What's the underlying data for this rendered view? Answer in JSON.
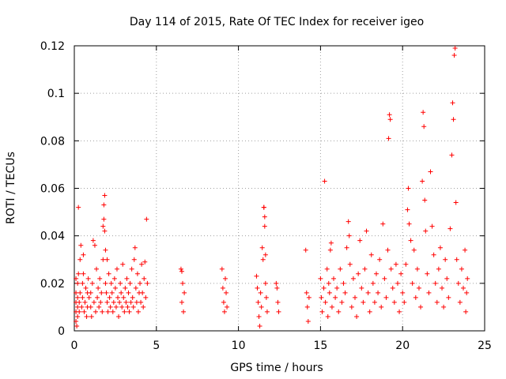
{
  "chart_data": {
    "type": "scatter",
    "title": "Day 114 of 2015, Rate Of TEC Index for receiver igeo",
    "xlabel": "GPS time / hours",
    "ylabel": "ROTI / TECUs",
    "xlim": [
      0,
      25
    ],
    "ylim": [
      0,
      0.12
    ],
    "x_ticks": [
      0,
      5,
      10,
      15,
      20,
      25
    ],
    "y_ticks": [
      0,
      0.02,
      0.04,
      0.06,
      0.08,
      0.1,
      0.12
    ],
    "x_tick_labels": [
      "0",
      "5",
      "10",
      "15",
      "20",
      "25"
    ],
    "y_tick_labels": [
      "0",
      "0.02",
      "0.04",
      "0.06",
      "0.08",
      "0.1",
      "0.12"
    ],
    "grid": true,
    "marker": "plus",
    "color": "#ff0000",
    "series": [
      {
        "name": "ROTI",
        "points": [
          [
            0.1,
            0.004
          ],
          [
            0.1,
            0.008
          ],
          [
            0.1,
            0.012
          ],
          [
            0.1,
            0.016
          ],
          [
            0.1,
            0.022
          ],
          [
            0.15,
            0.002
          ],
          [
            0.2,
            0.006
          ],
          [
            0.2,
            0.01
          ],
          [
            0.2,
            0.014
          ],
          [
            0.2,
            0.02
          ],
          [
            0.25,
            0.024
          ],
          [
            0.25,
            0.052
          ],
          [
            0.3,
            0.008
          ],
          [
            0.3,
            0.012
          ],
          [
            0.35,
            0.016
          ],
          [
            0.35,
            0.03
          ],
          [
            0.4,
            0.036
          ],
          [
            0.45,
            0.01
          ],
          [
            0.5,
            0.014
          ],
          [
            0.5,
            0.02
          ],
          [
            0.55,
            0.024
          ],
          [
            0.55,
            0.032
          ],
          [
            0.6,
            0.008
          ],
          [
            0.65,
            0.012
          ],
          [
            0.7,
            0.018
          ],
          [
            0.75,
            0.006
          ],
          [
            0.8,
            0.01
          ],
          [
            0.8,
            0.016
          ],
          [
            0.85,
            0.022
          ],
          [
            0.9,
            0.014
          ],
          [
            1.0,
            0.01
          ],
          [
            1.0,
            0.016
          ],
          [
            1.05,
            0.006
          ],
          [
            1.1,
            0.02
          ],
          [
            1.15,
            0.038
          ],
          [
            1.2,
            0.012
          ],
          [
            1.25,
            0.036
          ],
          [
            1.3,
            0.008
          ],
          [
            1.35,
            0.026
          ],
          [
            1.4,
            0.014
          ],
          [
            1.45,
            0.018
          ],
          [
            1.5,
            0.01
          ],
          [
            1.55,
            0.022
          ],
          [
            1.6,
            0.012
          ],
          [
            1.65,
            0.016
          ],
          [
            1.7,
            0.008
          ],
          [
            1.75,
            0.03
          ],
          [
            1.75,
            0.044
          ],
          [
            1.8,
            0.047
          ],
          [
            1.8,
            0.053
          ],
          [
            1.85,
            0.057
          ],
          [
            1.85,
            0.042
          ],
          [
            1.9,
            0.034
          ],
          [
            1.9,
            0.02
          ],
          [
            1.95,
            0.016
          ],
          [
            2.0,
            0.012
          ],
          [
            2.0,
            0.03
          ],
          [
            2.05,
            0.008
          ],
          [
            2.1,
            0.024
          ],
          [
            2.15,
            0.014
          ],
          [
            2.2,
            0.01
          ],
          [
            2.25,
            0.02
          ],
          [
            2.3,
            0.016
          ],
          [
            2.35,
            0.008
          ],
          [
            2.4,
            0.012
          ],
          [
            2.45,
            0.022
          ],
          [
            2.5,
            0.018
          ],
          [
            2.55,
            0.01
          ],
          [
            2.6,
            0.026
          ],
          [
            2.65,
            0.014
          ],
          [
            2.7,
            0.006
          ],
          [
            2.75,
            0.012
          ],
          [
            2.8,
            0.02
          ],
          [
            2.85,
            0.016
          ],
          [
            2.9,
            0.01
          ],
          [
            2.95,
            0.028
          ],
          [
            3.0,
            0.014
          ],
          [
            3.05,
            0.008
          ],
          [
            3.1,
            0.018
          ],
          [
            3.15,
            0.012
          ],
          [
            3.2,
            0.022
          ],
          [
            3.25,
            0.01
          ],
          [
            3.3,
            0.016
          ],
          [
            3.35,
            0.008
          ],
          [
            3.4,
            0.02
          ],
          [
            3.45,
            0.012
          ],
          [
            3.5,
            0.026
          ],
          [
            3.55,
            0.014
          ],
          [
            3.6,
            0.01
          ],
          [
            3.65,
            0.03
          ],
          [
            3.7,
            0.035
          ],
          [
            3.75,
            0.018
          ],
          [
            3.8,
            0.012
          ],
          [
            3.85,
            0.024
          ],
          [
            3.9,
            0.008
          ],
          [
            3.95,
            0.016
          ],
          [
            4.0,
            0.02
          ],
          [
            4.05,
            0.012
          ],
          [
            4.1,
            0.028
          ],
          [
            4.15,
            0.016
          ],
          [
            4.2,
            0.01
          ],
          [
            4.25,
            0.022
          ],
          [
            4.3,
            0.029
          ],
          [
            4.35,
            0.014
          ],
          [
            4.4,
            0.047
          ],
          [
            4.45,
            0.02
          ],
          [
            6.5,
            0.026
          ],
          [
            6.55,
            0.012
          ],
          [
            6.6,
            0.02
          ],
          [
            6.65,
            0.008
          ],
          [
            6.7,
            0.016
          ],
          [
            6.55,
            0.025
          ],
          [
            9.0,
            0.026
          ],
          [
            9.05,
            0.018
          ],
          [
            9.1,
            0.012
          ],
          [
            9.15,
            0.008
          ],
          [
            9.2,
            0.022
          ],
          [
            9.25,
            0.016
          ],
          [
            9.3,
            0.01
          ],
          [
            11.1,
            0.023
          ],
          [
            11.15,
            0.018
          ],
          [
            11.2,
            0.012
          ],
          [
            11.25,
            0.006
          ],
          [
            11.3,
            0.002
          ],
          [
            11.35,
            0.016
          ],
          [
            11.4,
            0.01
          ],
          [
            11.45,
            0.035
          ],
          [
            11.5,
            0.03
          ],
          [
            11.55,
            0.052
          ],
          [
            11.6,
            0.048
          ],
          [
            11.6,
            0.044
          ],
          [
            11.65,
            0.032
          ],
          [
            11.65,
            0.02
          ],
          [
            11.7,
            0.014
          ],
          [
            11.75,
            0.008
          ],
          [
            11.55,
            0.052
          ],
          [
            12.3,
            0.02
          ],
          [
            12.35,
            0.018
          ],
          [
            12.4,
            0.012
          ],
          [
            12.45,
            0.008
          ],
          [
            14.1,
            0.034
          ],
          [
            14.15,
            0.016
          ],
          [
            14.2,
            0.01
          ],
          [
            14.25,
            0.004
          ],
          [
            14.3,
            0.014
          ],
          [
            15.0,
            0.022
          ],
          [
            15.05,
            0.014
          ],
          [
            15.1,
            0.008
          ],
          [
            15.2,
            0.018
          ],
          [
            15.25,
            0.063
          ],
          [
            15.3,
            0.012
          ],
          [
            15.4,
            0.026
          ],
          [
            15.45,
            0.006
          ],
          [
            15.5,
            0.02
          ],
          [
            15.55,
            0.016
          ],
          [
            15.6,
            0.034
          ],
          [
            15.65,
            0.037
          ],
          [
            15.7,
            0.01
          ],
          [
            15.8,
            0.022
          ],
          [
            15.9,
            0.014
          ],
          [
            16.0,
            0.018
          ],
          [
            16.1,
            0.008
          ],
          [
            16.2,
            0.026
          ],
          [
            16.3,
            0.012
          ],
          [
            16.4,
            0.02
          ],
          [
            16.5,
            0.016
          ],
          [
            16.6,
            0.035
          ],
          [
            16.7,
            0.046
          ],
          [
            16.75,
            0.04
          ],
          [
            16.8,
            0.028
          ],
          [
            16.9,
            0.01
          ],
          [
            17.0,
            0.022
          ],
          [
            17.1,
            0.014
          ],
          [
            17.2,
            0.006
          ],
          [
            17.3,
            0.024
          ],
          [
            17.4,
            0.038
          ],
          [
            17.5,
            0.018
          ],
          [
            17.6,
            0.012
          ],
          [
            17.7,
            0.026
          ],
          [
            17.8,
            0.042
          ],
          [
            17.9,
            0.016
          ],
          [
            18.0,
            0.008
          ],
          [
            18.1,
            0.032
          ],
          [
            18.2,
            0.02
          ],
          [
            18.3,
            0.012
          ],
          [
            18.4,
            0.024
          ],
          [
            18.5,
            0.016
          ],
          [
            18.6,
            0.03
          ],
          [
            18.7,
            0.01
          ],
          [
            18.8,
            0.045
          ],
          [
            18.9,
            0.022
          ],
          [
            19.0,
            0.014
          ],
          [
            19.1,
            0.034
          ],
          [
            19.15,
            0.081
          ],
          [
            19.2,
            0.091
          ],
          [
            19.25,
            0.089
          ],
          [
            19.3,
            0.026
          ],
          [
            19.4,
            0.018
          ],
          [
            19.5,
            0.012
          ],
          [
            19.6,
            0.028
          ],
          [
            19.7,
            0.02
          ],
          [
            19.8,
            0.008
          ],
          [
            19.9,
            0.024
          ],
          [
            20.0,
            0.016
          ],
          [
            20.1,
            0.012
          ],
          [
            20.2,
            0.028
          ],
          [
            20.3,
            0.051
          ],
          [
            20.35,
            0.06
          ],
          [
            20.4,
            0.045
          ],
          [
            20.5,
            0.038
          ],
          [
            20.6,
            0.02
          ],
          [
            20.7,
            0.034
          ],
          [
            20.8,
            0.014
          ],
          [
            20.9,
            0.026
          ],
          [
            21.0,
            0.018
          ],
          [
            21.1,
            0.01
          ],
          [
            21.2,
            0.063
          ],
          [
            21.25,
            0.092
          ],
          [
            21.3,
            0.086
          ],
          [
            21.35,
            0.055
          ],
          [
            21.4,
            0.042
          ],
          [
            21.5,
            0.024
          ],
          [
            21.6,
            0.016
          ],
          [
            21.7,
            0.067
          ],
          [
            21.8,
            0.044
          ],
          [
            21.9,
            0.032
          ],
          [
            22.0,
            0.02
          ],
          [
            22.1,
            0.012
          ],
          [
            22.2,
            0.026
          ],
          [
            22.3,
            0.035
          ],
          [
            22.4,
            0.018
          ],
          [
            22.5,
            0.01
          ],
          [
            22.6,
            0.03
          ],
          [
            22.7,
            0.022
          ],
          [
            22.8,
            0.014
          ],
          [
            22.9,
            0.043
          ],
          [
            23.0,
            0.074
          ],
          [
            23.05,
            0.096
          ],
          [
            23.1,
            0.089
          ],
          [
            23.15,
            0.116
          ],
          [
            23.2,
            0.119
          ],
          [
            23.25,
            0.054
          ],
          [
            23.3,
            0.03
          ],
          [
            23.4,
            0.02
          ],
          [
            23.5,
            0.012
          ],
          [
            23.6,
            0.026
          ],
          [
            23.7,
            0.018
          ],
          [
            23.8,
            0.034
          ],
          [
            23.85,
            0.008
          ],
          [
            23.9,
            0.016
          ],
          [
            23.95,
            0.022
          ]
        ]
      }
    ]
  }
}
